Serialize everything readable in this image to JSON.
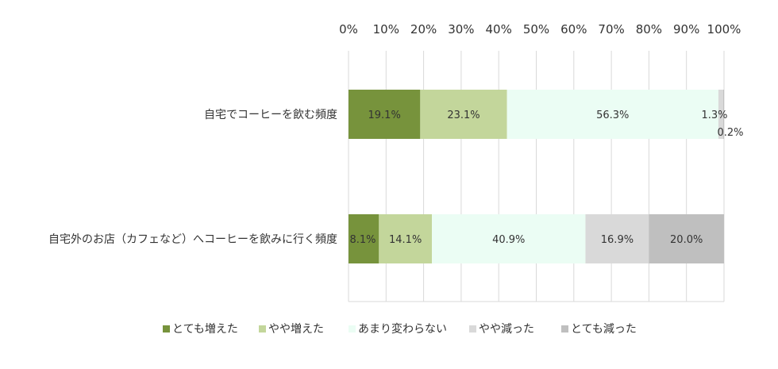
{
  "chart_data": {
    "type": "bar",
    "orientation": "horizontal",
    "stacked": "percent",
    "categories": [
      "自宅でコーヒーを飲む頻度",
      "自宅外のお店（カフェなど）へコーヒーを飲みに行く頻度"
    ],
    "series": [
      {
        "name": "とても増えた",
        "values": [
          19.1,
          8.1
        ],
        "color": "#77933c"
      },
      {
        "name": "やや増えた",
        "values": [
          23.1,
          14.1
        ],
        "color": "#c3d69b"
      },
      {
        "name": "あまり変わらない",
        "values": [
          56.3,
          40.9
        ],
        "color": "#ebfdf4"
      },
      {
        "name": "やや減った",
        "values": [
          1.3,
          16.9
        ],
        "color": "#d9d9d9"
      },
      {
        "name": "とても減った",
        "values": [
          0.2,
          20.0
        ],
        "color": "#bfbfbf"
      }
    ],
    "data_labels": [
      [
        "19.1%",
        "23.1%",
        "56.3%",
        "1.3%",
        "0.2%"
      ],
      [
        "8.1%",
        "14.1%",
        "40.9%",
        "16.9%",
        "20.0%"
      ]
    ],
    "x_ticks": [
      "0%",
      "10%",
      "20%",
      "30%",
      "40%",
      "50%",
      "60%",
      "70%",
      "80%",
      "90%",
      "100%"
    ],
    "xlim": [
      0,
      100
    ],
    "x_axis_position": "top",
    "grid": true,
    "legend_position": "bottom"
  }
}
